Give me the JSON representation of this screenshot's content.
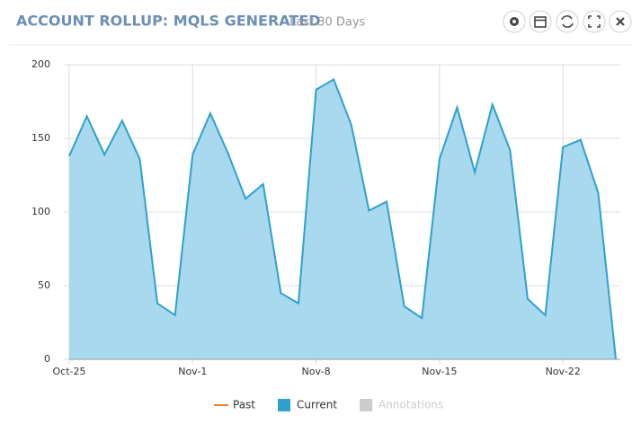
{
  "chart_data": {
    "type": "area",
    "title": "ACCOUNT ROLLUP: MQLS GENERATED",
    "subtitle": "Last 30 Days",
    "categories": [
      "Oct-25",
      null,
      null,
      null,
      null,
      null,
      null,
      "Nov-1",
      null,
      null,
      null,
      null,
      null,
      null,
      "Nov-8",
      null,
      null,
      null,
      null,
      null,
      null,
      "Nov-15",
      null,
      null,
      null,
      null,
      null,
      null,
      "Nov-22",
      null,
      null,
      null
    ],
    "series": [
      {
        "name": "Past",
        "color": "#f07d2a",
        "values": [
          null,
          null,
          null,
          null,
          null,
          null,
          null,
          null,
          null,
          null,
          null,
          null,
          null,
          null,
          null,
          null,
          null,
          null,
          null,
          null,
          null,
          null,
          null,
          null,
          null,
          null,
          null,
          null,
          null,
          null,
          null,
          null
        ]
      },
      {
        "name": "Current",
        "color": "#2ea1cf",
        "fill": "#a8d9ee",
        "values": [
          138,
          165,
          139,
          162,
          136,
          38,
          30,
          139,
          167,
          140,
          109,
          119,
          45,
          38,
          183,
          190,
          159,
          101,
          107,
          36,
          28,
          136,
          171,
          127,
          173,
          142,
          41,
          30,
          144,
          149,
          113,
          0
        ]
      }
    ],
    "annotations": {
      "name": "Annotations",
      "color": "#cccccc"
    },
    "ylim": [
      0,
      200
    ],
    "yticks": [
      0,
      50,
      100,
      150,
      200
    ],
    "grid": true
  }
}
